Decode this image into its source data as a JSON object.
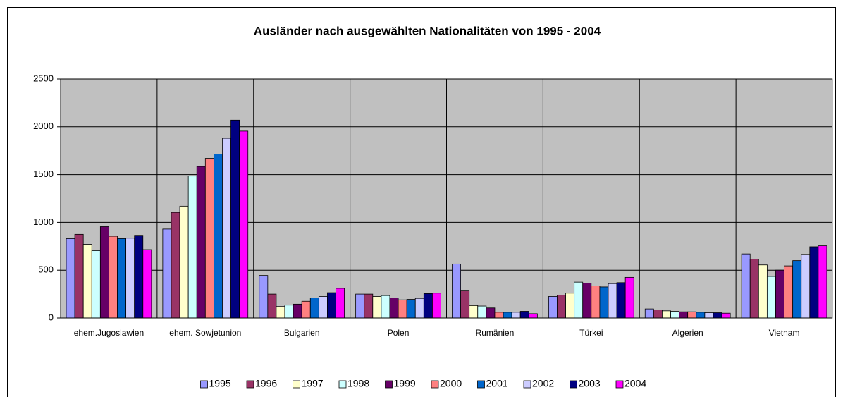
{
  "chart_data": {
    "type": "bar",
    "title": "Ausländer nach ausgewählten Nationalitäten von 1995 - 2004",
    "categories": [
      "ehem.Jugoslawien",
      "ehem. Sowjetunion",
      "Bulgarien",
      "Polen",
      "Rumänien",
      "Türkei",
      "Algerien",
      "Vietnam"
    ],
    "series": [
      {
        "name": "1995",
        "color": "#9999ff",
        "values": [
          830,
          930,
          445,
          250,
          565,
          225,
          95,
          670
        ]
      },
      {
        "name": "1996",
        "color": "#993366",
        "values": [
          875,
          1105,
          250,
          250,
          290,
          240,
          85,
          615
        ]
      },
      {
        "name": "1997",
        "color": "#ffffcc",
        "values": [
          770,
          1170,
          120,
          225,
          130,
          260,
          75,
          555
        ]
      },
      {
        "name": "1998",
        "color": "#ccffff",
        "values": [
          705,
          1485,
          135,
          235,
          125,
          375,
          70,
          435
        ]
      },
      {
        "name": "1999",
        "color": "#660066",
        "values": [
          955,
          1585,
          145,
          210,
          105,
          365,
          65,
          500
        ]
      },
      {
        "name": "2000",
        "color": "#ff8080",
        "values": [
          855,
          1670,
          175,
          190,
          60,
          335,
          65,
          545
        ]
      },
      {
        "name": "2001",
        "color": "#0066cc",
        "values": [
          830,
          1715,
          210,
          195,
          60,
          325,
          60,
          600
        ]
      },
      {
        "name": "2002",
        "color": "#ccccff",
        "values": [
          835,
          1880,
          225,
          205,
          60,
          360,
          55,
          665
        ]
      },
      {
        "name": "2003",
        "color": "#000080",
        "values": [
          865,
          2070,
          265,
          255,
          70,
          370,
          55,
          745
        ]
      },
      {
        "name": "2004",
        "color": "#ff00ff",
        "values": [
          715,
          1955,
          310,
          260,
          45,
          425,
          50,
          755
        ]
      }
    ],
    "ylim": [
      0,
      2500
    ],
    "yticks": [
      0,
      500,
      1000,
      1500,
      2000,
      2500
    ],
    "grid": true,
    "legend": "bottom"
  }
}
